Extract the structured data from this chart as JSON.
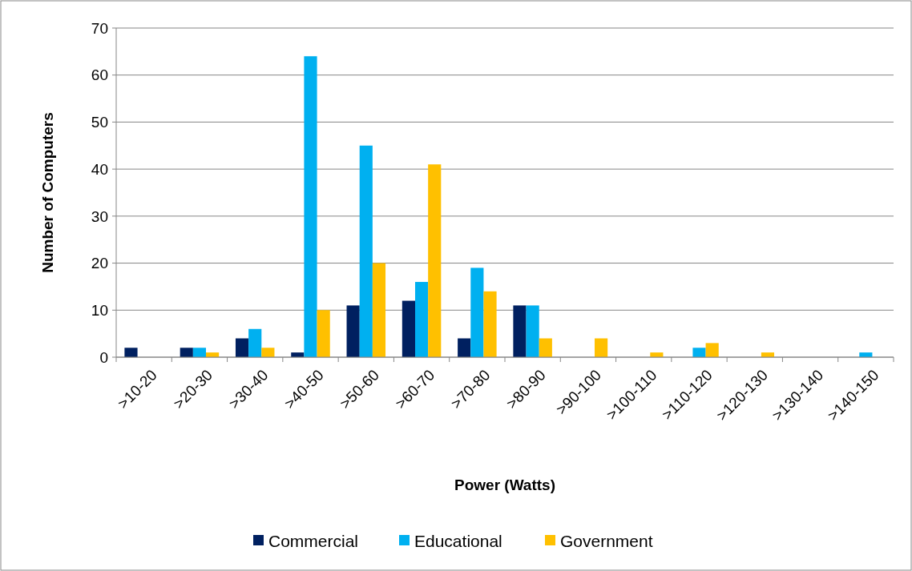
{
  "chart_data": {
    "type": "bar",
    "xlabel": "Power (Watts)",
    "ylabel": "Number of Computers",
    "categories": [
      ">10-20",
      ">20-30",
      ">30-40",
      ">40-50",
      ">50-60",
      ">60-70",
      ">70-80",
      ">80-90",
      ">90-100",
      ">100-110",
      ">110-120",
      ">120-130",
      ">130-140",
      ">140-150"
    ],
    "series": [
      {
        "name": "Commercial",
        "color": "#002060",
        "values": [
          2,
          2,
          4,
          1,
          11,
          12,
          4,
          11,
          0,
          0,
          0,
          0,
          0,
          0
        ]
      },
      {
        "name": "Educational",
        "color": "#00b0f0",
        "values": [
          0,
          2,
          6,
          64,
          45,
          16,
          19,
          11,
          0,
          0,
          2,
          0,
          0,
          1
        ]
      },
      {
        "name": "Government",
        "color": "#ffc000",
        "values": [
          0,
          1,
          2,
          10,
          20,
          41,
          14,
          4,
          4,
          1,
          3,
          1,
          0,
          0
        ]
      }
    ],
    "ylim": [
      0,
      70
    ],
    "yticks": [
      0,
      10,
      20,
      30,
      40,
      50,
      60,
      70
    ],
    "grid": "y",
    "legend": "bottom"
  }
}
